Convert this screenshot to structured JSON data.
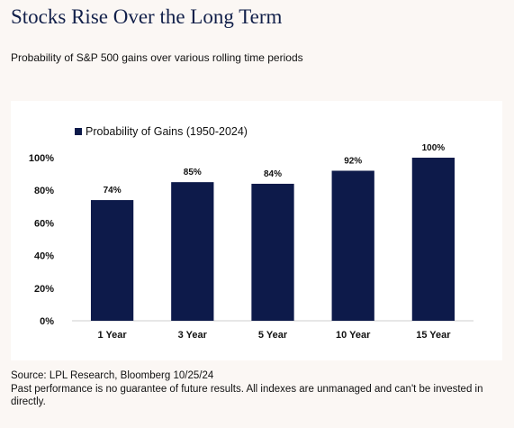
{
  "header": {
    "title": "Stocks Rise Over the Long Term",
    "subtitle": "Probability of S&P 500 gains over various rolling time periods"
  },
  "footer": {
    "source": "Source: LPL Research, Bloomberg 10/25/24",
    "disclaimer": "Past performance is no guarantee of future results. All indexes are unmanaged and can't be invested in directly."
  },
  "colors": {
    "bar": "#0d1a4a",
    "title": "#12204a",
    "background": "#fbf7f4",
    "panel": "#ffffff"
  },
  "chart_data": {
    "type": "bar",
    "title": "",
    "xlabel": "",
    "ylabel": "",
    "categories": [
      "1 Year",
      "3 Year",
      "5 Year",
      "10 Year",
      "15 Year"
    ],
    "series": [
      {
        "name": "Probability of Gains (1950-2024)",
        "values": [
          74,
          85,
          84,
          92,
          100
        ],
        "labels": [
          "74%",
          "85%",
          "84%",
          "92%",
          "100%"
        ]
      }
    ],
    "ylim": [
      0,
      100
    ],
    "yticks": [
      0,
      20,
      40,
      60,
      80,
      100
    ],
    "ytick_labels": [
      "0%",
      "20%",
      "40%",
      "60%",
      "80%",
      "100%"
    ],
    "grid": false,
    "legend": "top-left"
  }
}
